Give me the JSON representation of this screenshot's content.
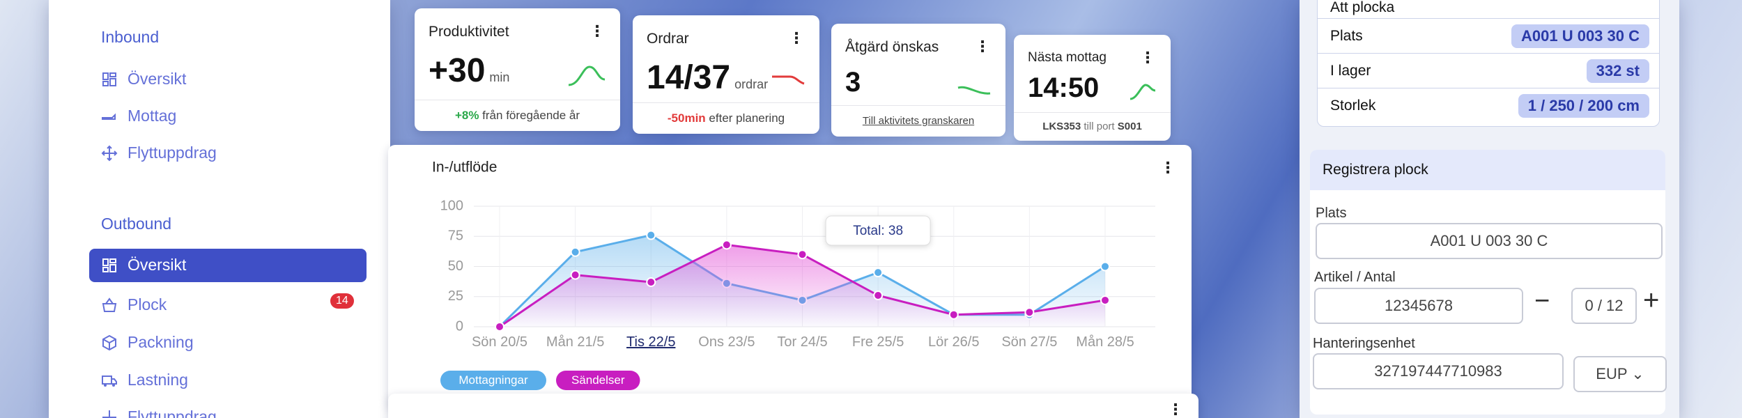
{
  "sidebar": {
    "inbound": {
      "title": "Inbound",
      "items": [
        "Översikt",
        "Mottag",
        "Flyttuppdrag"
      ]
    },
    "outbound": {
      "title": "Outbound",
      "items": [
        "Översikt",
        "Plock",
        "Packning",
        "Lastning",
        "Flyttuppdrag"
      ],
      "plock_badge": "14"
    }
  },
  "kpis": [
    {
      "title": "Produktivitet",
      "value": "+30",
      "unit": "min",
      "delta": "+8%",
      "note": "från föregående år"
    },
    {
      "title": "Ordrar",
      "value": "14/37",
      "unit": "ordrar",
      "delta": "-50min",
      "note": "efter planering"
    },
    {
      "title": "Åtgärd önskas",
      "value": "3",
      "link": "Till aktivitets granskaren"
    },
    {
      "title": "Nästa mottag",
      "value": "14:50",
      "ref": "LKS353",
      "note": "till port",
      "port": "S001"
    }
  ],
  "chart_data": {
    "type": "line",
    "title": "In-/utflöde",
    "categories": [
      "Sön 20/5",
      "Mån 21/5",
      "Tis 22/5",
      "Ons 23/5",
      "Tor 24/5",
      "Fre 25/5",
      "Lör 26/5",
      "Sön 27/5",
      "Mån 28/5"
    ],
    "series": [
      {
        "name": "Mottagningar",
        "color": "#5aaeea",
        "values": [
          0,
          62,
          76,
          36,
          22,
          45,
          10,
          10,
          50
        ]
      },
      {
        "name": "Sändelser",
        "color": "#c81ec0",
        "values": [
          0,
          43,
          37,
          68,
          60,
          26,
          10,
          12,
          22
        ]
      }
    ],
    "ylim": [
      0,
      100
    ],
    "yticks": [
      0,
      25,
      50,
      75,
      100
    ],
    "grid": true,
    "tooltip": "Total: 38"
  },
  "pick_info": {
    "header": "Att plocka",
    "rows": [
      {
        "key": "Plats",
        "value": "A001 U 003 30 C"
      },
      {
        "key": "I lager",
        "value": "332 st"
      },
      {
        "key": "Storlek",
        "value": "1 / 250 / 200 cm"
      }
    ]
  },
  "register": {
    "title": "Registrera plock",
    "place_label": "Plats",
    "place": "A001 U 003 30 C",
    "article_label": "Artikel / Antal",
    "article": "12345678",
    "count": "0 / 12",
    "unit_label": "Hanteringsenhet",
    "unit": "327197447710983",
    "unit_type": "EUP"
  }
}
